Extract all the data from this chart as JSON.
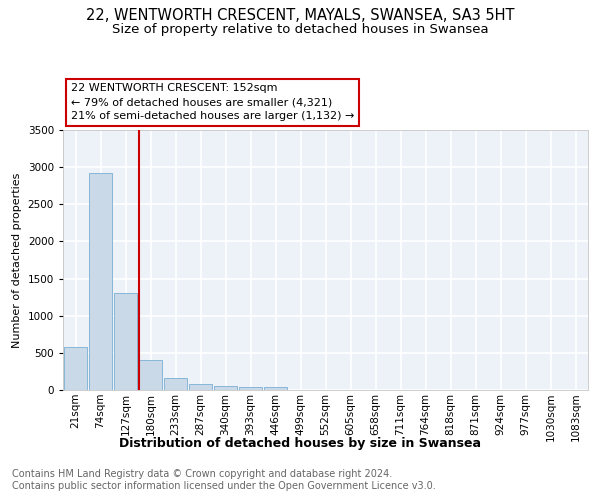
{
  "title": "22, WENTWORTH CRESCENT, MAYALS, SWANSEA, SA3 5HT",
  "subtitle": "Size of property relative to detached houses in Swansea",
  "xlabel": "Distribution of detached houses by size in Swansea",
  "ylabel": "Number of detached properties",
  "footer_line1": "Contains HM Land Registry data © Crown copyright and database right 2024.",
  "footer_line2": "Contains public sector information licensed under the Open Government Licence v3.0.",
  "bar_labels": [
    "21sqm",
    "74sqm",
    "127sqm",
    "180sqm",
    "233sqm",
    "287sqm",
    "340sqm",
    "393sqm",
    "446sqm",
    "499sqm",
    "552sqm",
    "605sqm",
    "658sqm",
    "711sqm",
    "764sqm",
    "818sqm",
    "871sqm",
    "924sqm",
    "977sqm",
    "1030sqm",
    "1083sqm"
  ],
  "bar_values": [
    574,
    2920,
    1300,
    410,
    155,
    85,
    50,
    45,
    40,
    0,
    0,
    0,
    0,
    0,
    0,
    0,
    0,
    0,
    0,
    0,
    0
  ],
  "bar_color": "#c9d9e8",
  "bar_edge_color": "#7bafd4",
  "bg_color": "#edf2f8",
  "grid_color": "#ffffff",
  "vline_x": 2.52,
  "vline_color": "#cc0000",
  "annotation_text": "22 WENTWORTH CRESCENT: 152sqm\n← 79% of detached houses are smaller (4,321)\n21% of semi-detached houses are larger (1,132) →",
  "annotation_box_color": "#cc0000",
  "ylim": [
    0,
    3500
  ],
  "yticks": [
    0,
    500,
    1000,
    1500,
    2000,
    2500,
    3000,
    3500
  ],
  "title_fontsize": 10.5,
  "subtitle_fontsize": 9.5,
  "xlabel_fontsize": 9,
  "ylabel_fontsize": 8,
  "tick_fontsize": 7.5,
  "annotation_fontsize": 8,
  "footer_fontsize": 7
}
